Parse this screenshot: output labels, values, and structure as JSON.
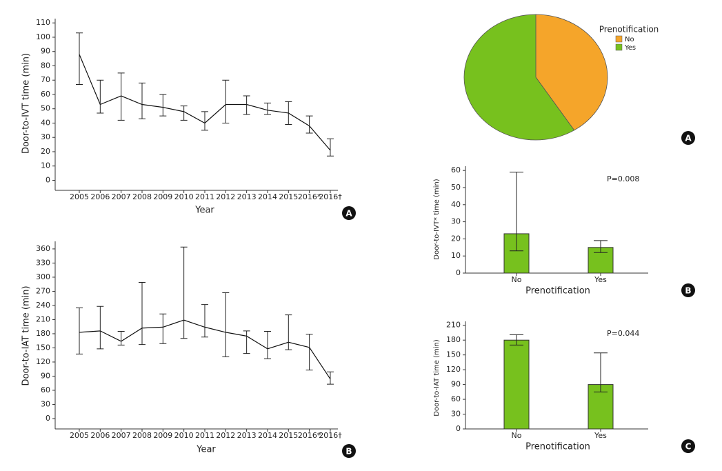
{
  "chart_data": [
    {
      "type": "line",
      "categories": [
        "2005",
        "2006",
        "2007",
        "2008",
        "2009",
        "2010",
        "2011",
        "2012",
        "2013",
        "2014",
        "2015",
        "2016*",
        "2016†"
      ],
      "values": [
        88,
        53,
        59,
        53,
        51,
        48,
        40,
        53,
        53,
        49,
        47,
        38,
        21
      ],
      "lower": [
        67,
        47,
        42,
        43,
        45,
        42,
        35,
        40,
        46,
        46,
        39,
        33,
        17
      ],
      "upper": [
        103,
        70,
        75,
        68,
        60,
        52,
        48,
        70,
        59,
        54,
        55,
        45,
        29
      ],
      "color": "#111111",
      "ylim": [
        -7,
        113
      ],
      "yticks": [
        0,
        10,
        20,
        30,
        40,
        50,
        60,
        70,
        80,
        90,
        100,
        110
      ],
      "x_label": "Year",
      "y_label": "Door-to-IVT time (min)",
      "panel_label": "A"
    },
    {
      "type": "line",
      "categories": [
        "2005",
        "2006",
        "2007",
        "2008",
        "2009",
        "2010",
        "2011",
        "2012",
        "2013",
        "2014",
        "2015",
        "2016*",
        "2016†"
      ],
      "values": [
        183,
        186,
        164,
        192,
        194,
        209,
        194,
        183,
        175,
        148,
        162,
        151,
        84
      ],
      "lower": [
        137,
        148,
        156,
        157,
        159,
        170,
        173,
        131,
        138,
        127,
        146,
        103,
        73
      ],
      "upper": [
        235,
        238,
        185,
        289,
        222,
        364,
        242,
        267,
        186,
        185,
        220,
        179,
        99
      ],
      "color": "#111111",
      "ylim": [
        -22,
        376
      ],
      "yticks": [
        0,
        30,
        60,
        90,
        120,
        150,
        180,
        210,
        240,
        270,
        300,
        330,
        360
      ],
      "x_label": "Year",
      "y_label": "Door-to-IAT time (min)",
      "panel_label": "B"
    },
    {
      "type": "pie",
      "legend_title": "Prenotification",
      "categories": [
        "No",
        "Yes"
      ],
      "values": [
        41,
        59
      ],
      "colors": [
        "#f5a52a",
        "#77c11e"
      ],
      "panel_label": "A"
    },
    {
      "type": "bar",
      "categories": [
        "No",
        "Yes"
      ],
      "values": [
        23,
        15
      ],
      "lower": [
        13,
        12
      ],
      "upper": [
        59,
        19
      ],
      "color": "#77c11e",
      "ylim": [
        0,
        62.5
      ],
      "yticks": [
        0,
        10,
        20,
        30,
        40,
        50,
        60
      ],
      "x_label": "Prenotification",
      "y_label": "Door-to-IVT* time (min)",
      "annotation": "P=0.008",
      "panel_label": "B"
    },
    {
      "type": "bar",
      "categories": [
        "No",
        "Yes"
      ],
      "values": [
        180,
        90
      ],
      "lower": [
        170,
        75
      ],
      "upper": [
        191,
        154
      ],
      "color": "#77c11e",
      "ylim": [
        0,
        218
      ],
      "yticks": [
        0,
        30,
        60,
        90,
        120,
        150,
        180,
        210
      ],
      "x_label": "Prenotification",
      "y_label": "Door-to-IAT time (min)",
      "annotation": "P=0.044",
      "panel_label": "C"
    }
  ]
}
